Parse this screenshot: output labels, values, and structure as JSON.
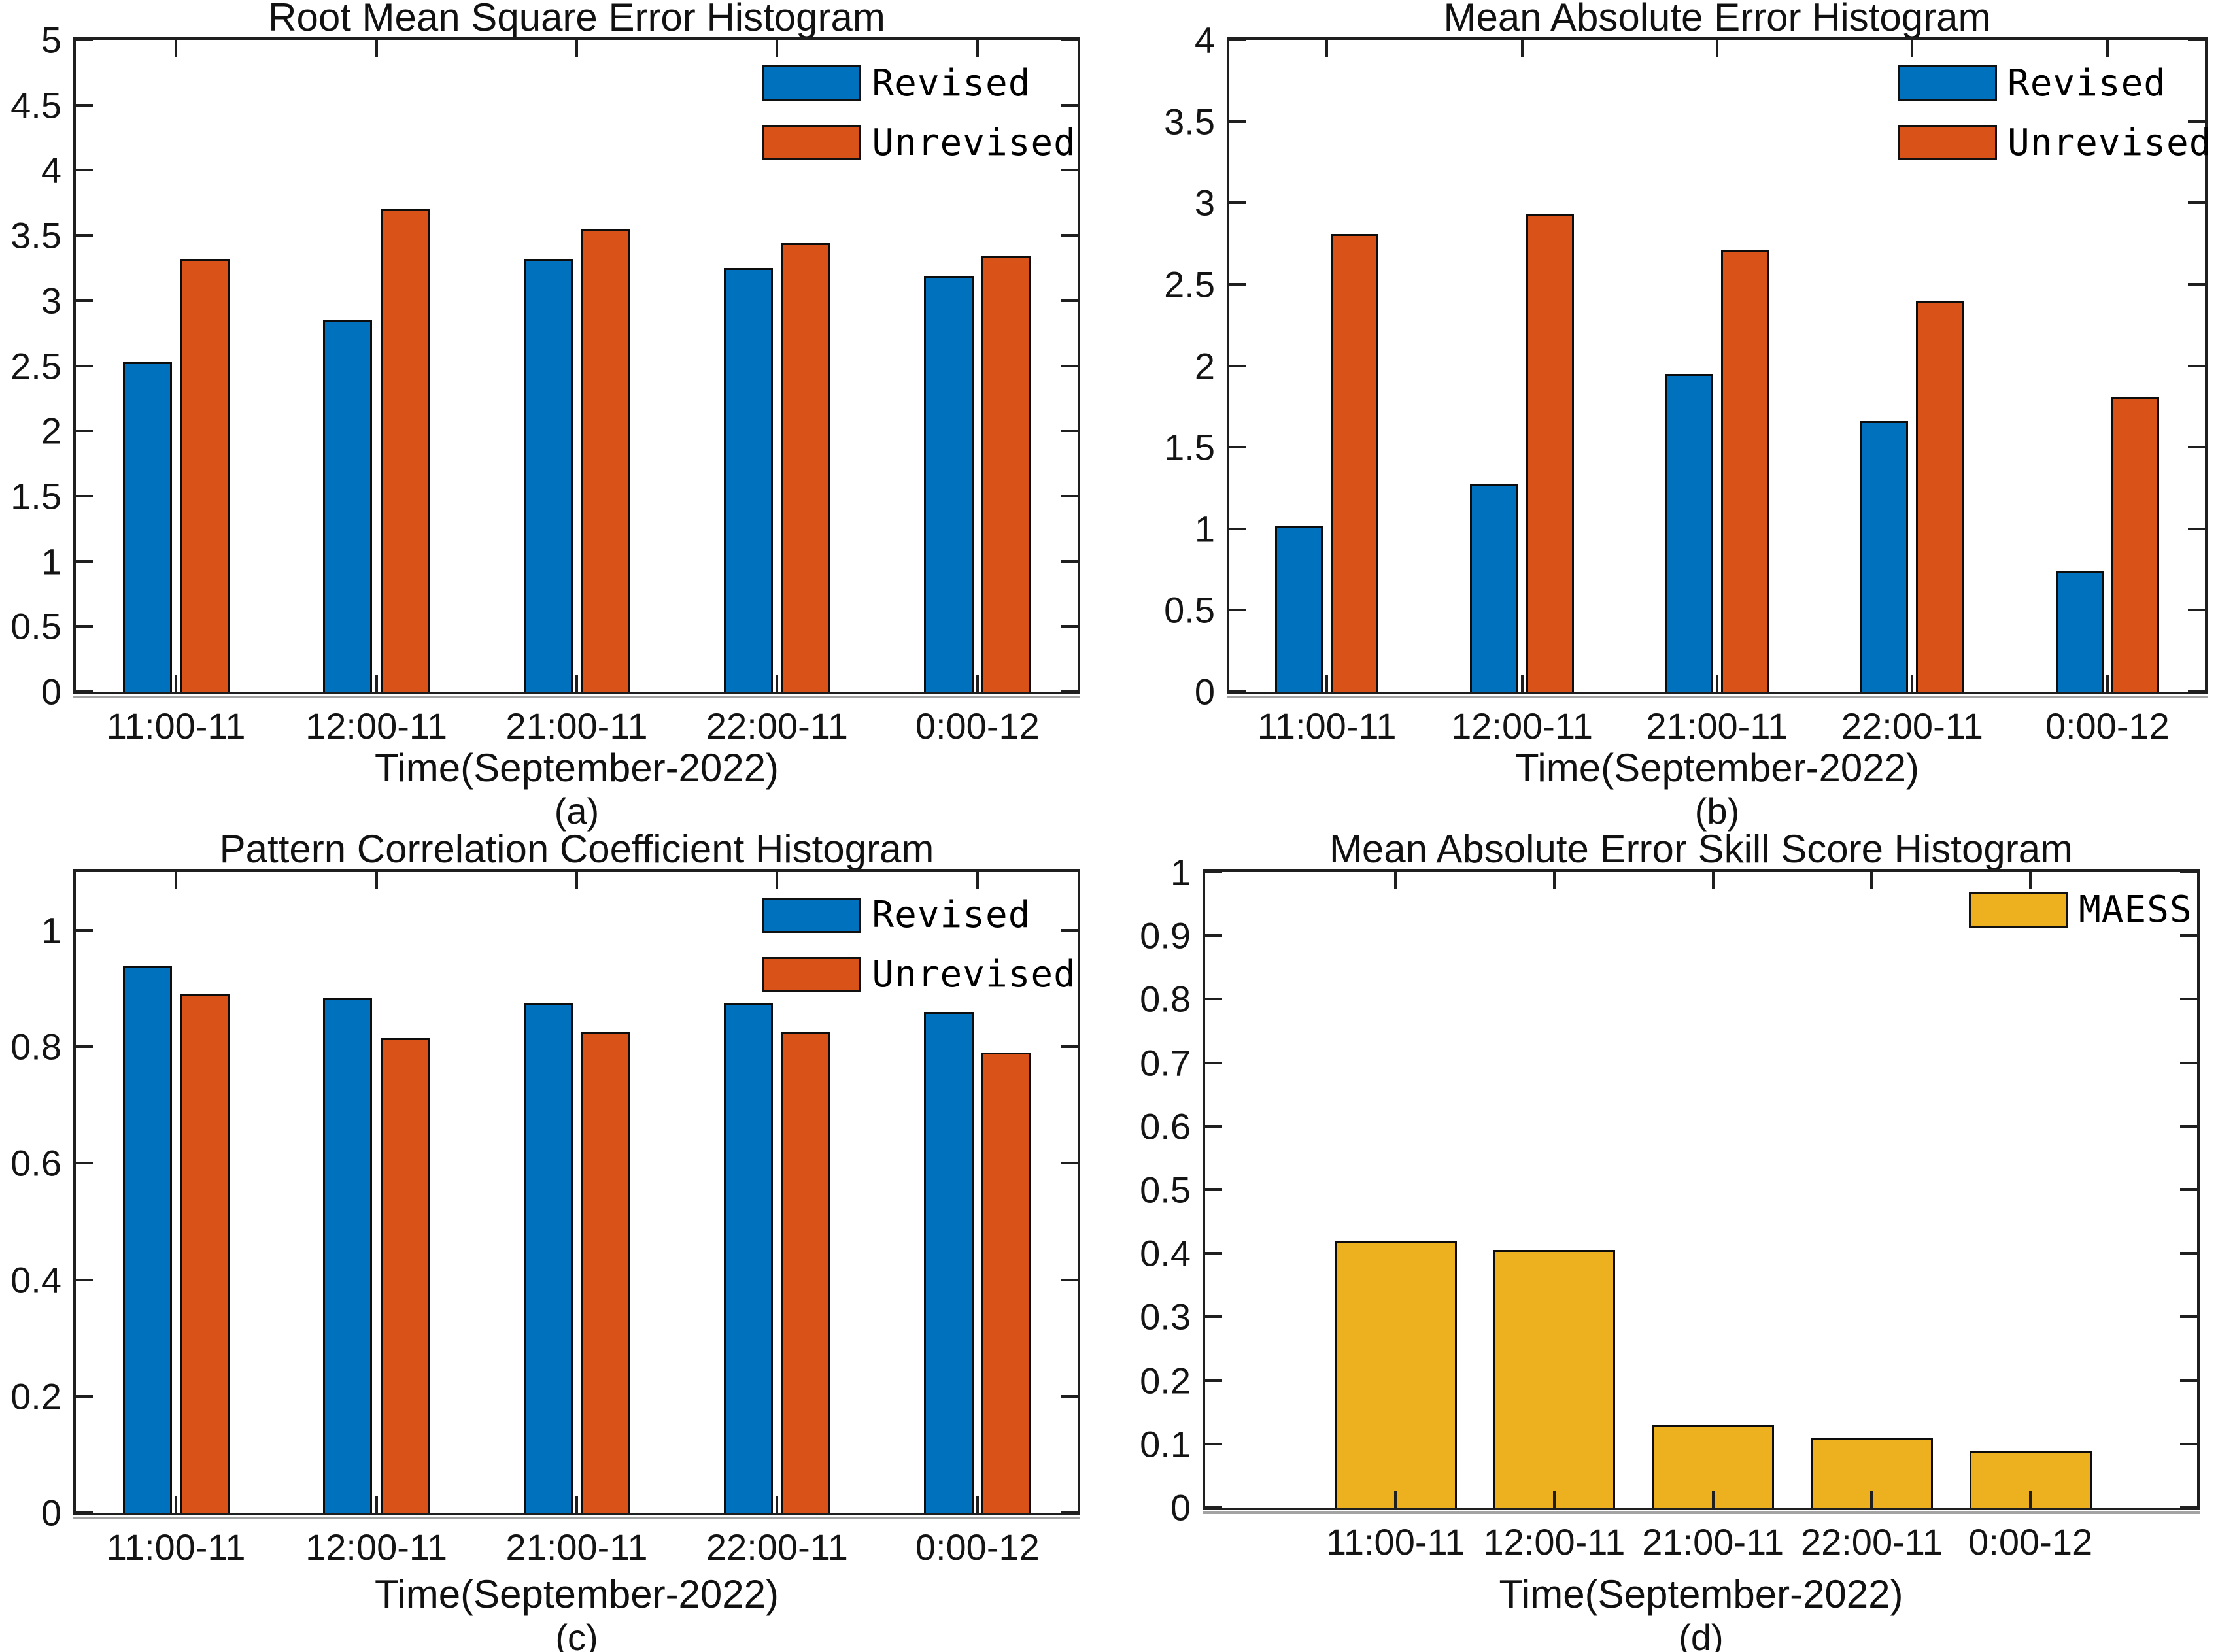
{
  "figure": {
    "background": "#ffffff",
    "axis_color": "#1f1f1f",
    "palette": {
      "revised_blue": "#0072BD",
      "unrevised_orange": "#D95319",
      "maess_yellow": "#EDB120"
    }
  },
  "chart_data": [
    {
      "type": "bar",
      "title": "Root Mean Square Error Histogram",
      "xlabel": "Time(September-2022)",
      "sublabel": "(a)",
      "categories": [
        "11:00-11",
        "12:00-11",
        "21:00-11",
        "22:00-11",
        "0:00-12"
      ],
      "series": [
        {
          "name": "Revised",
          "color": "#0072BD",
          "values": [
            2.53,
            2.85,
            3.32,
            3.25,
            3.19
          ]
        },
        {
          "name": "Unrevised",
          "color": "#D95319",
          "values": [
            3.32,
            3.7,
            3.55,
            3.44,
            3.34
          ]
        }
      ],
      "ylim": [
        0,
        5
      ],
      "yticks": [
        "0",
        "0.5",
        "1",
        "1.5",
        "2",
        "2.5",
        "3",
        "3.5",
        "4",
        "4.5",
        "5"
      ],
      "xlim": [
        0.5,
        5.5
      ],
      "grid": false,
      "legend_position": "top-right"
    },
    {
      "type": "bar",
      "title": "Mean Absolute Error Histogram",
      "xlabel": "Time(September-2022)",
      "sublabel": "(b)",
      "categories": [
        "11:00-11",
        "12:00-11",
        "21:00-11",
        "22:00-11",
        "0:00-12"
      ],
      "series": [
        {
          "name": "Revised",
          "color": "#0072BD",
          "values": [
            1.02,
            1.27,
            1.95,
            1.66,
            0.74
          ]
        },
        {
          "name": "Unrevised",
          "color": "#D95319",
          "values": [
            2.81,
            2.93,
            2.71,
            2.4,
            1.81
          ]
        }
      ],
      "ylim": [
        0,
        4
      ],
      "yticks": [
        "0",
        "0.5",
        "1",
        "1.5",
        "2",
        "2.5",
        "3",
        "3.5",
        "4"
      ],
      "xlim": [
        0.5,
        5.5
      ],
      "grid": false,
      "legend_position": "top-right"
    },
    {
      "type": "bar",
      "title": "Pattern Correlation Coefficient Histogram",
      "xlabel": "Time(September-2022)",
      "sublabel": "(c)",
      "categories": [
        "11:00-11",
        "12:00-11",
        "21:00-11",
        "22:00-11",
        "0:00-12"
      ],
      "series": [
        {
          "name": "Revised",
          "color": "#0072BD",
          "values": [
            0.94,
            0.885,
            0.875,
            0.875,
            0.86
          ]
        },
        {
          "name": "Unrevised",
          "color": "#D95319",
          "values": [
            0.89,
            0.815,
            0.825,
            0.825,
            0.79
          ]
        }
      ],
      "ylim": [
        0,
        1.1
      ],
      "yticks": [
        "0",
        "0.2",
        "0.4",
        "0.6",
        "0.8",
        "1"
      ],
      "xlim": [
        0.5,
        5.5
      ],
      "grid": false,
      "legend_position": "top-right"
    },
    {
      "type": "bar",
      "title": "Mean Absolute Error Skill Score Histogram",
      "xlabel": "Time(September-2022)",
      "sublabel": "(d)",
      "categories": [
        "11:00-11",
        "12:00-11",
        "21:00-11",
        "22:00-11",
        "0:00-12"
      ],
      "series": [
        {
          "name": "MAESS",
          "color": "#EDB120",
          "values": [
            0.42,
            0.405,
            0.13,
            0.11,
            0.088
          ]
        }
      ],
      "ylim": [
        0,
        1
      ],
      "yticks": [
        "0",
        "0.1",
        "0.2",
        "0.3",
        "0.4",
        "0.5",
        "0.6",
        "0.7",
        "0.8",
        "0.9",
        "1"
      ],
      "xlim": [
        -0.2,
        6.05
      ],
      "grid": false,
      "legend_position": "top-right"
    }
  ]
}
